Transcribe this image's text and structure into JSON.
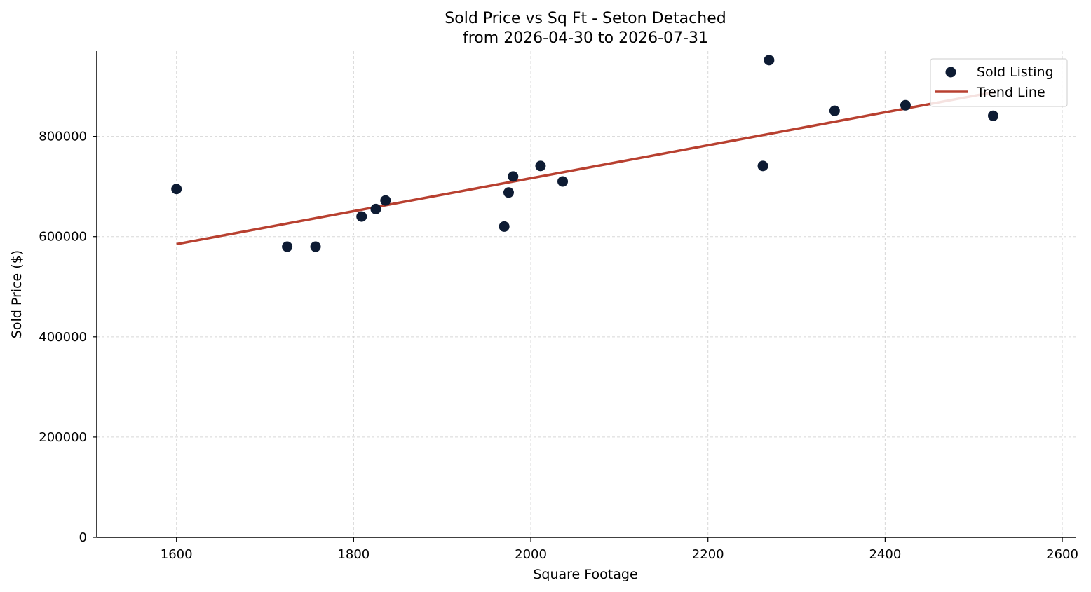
{
  "chart_data": {
    "type": "scatter",
    "title_line1": "Sold Price vs Sq Ft - Seton Detached",
    "title_line2": "from 2026-04-30 to 2026-07-31",
    "xlabel": "Square Footage",
    "ylabel": "Sold Price ($)",
    "xlim": [
      1510,
      2615
    ],
    "ylim": [
      0,
      970000
    ],
    "xticks": [
      1600,
      1800,
      2000,
      2200,
      2400,
      2600
    ],
    "yticks": [
      0,
      200000,
      400000,
      600000,
      800000
    ],
    "grid": true,
    "legend_position": "top-right",
    "series": [
      {
        "name": "Sold Listing",
        "kind": "scatter",
        "color": "#0d1b33",
        "points": [
          {
            "x": 1600,
            "y": 695000
          },
          {
            "x": 1725,
            "y": 580000
          },
          {
            "x": 1757,
            "y": 580000
          },
          {
            "x": 1809,
            "y": 640000
          },
          {
            "x": 1825,
            "y": 655000
          },
          {
            "x": 1836,
            "y": 672000
          },
          {
            "x": 1970,
            "y": 620000
          },
          {
            "x": 1975,
            "y": 688000
          },
          {
            "x": 1980,
            "y": 720000
          },
          {
            "x": 2011,
            "y": 741000
          },
          {
            "x": 2036,
            "y": 710000
          },
          {
            "x": 2262,
            "y": 741000
          },
          {
            "x": 2269,
            "y": 952000
          },
          {
            "x": 2343,
            "y": 851000
          },
          {
            "x": 2423,
            "y": 862000
          },
          {
            "x": 2522,
            "y": 841000
          }
        ]
      },
      {
        "name": "Trend Line",
        "kind": "line",
        "color": "#b84030",
        "points": [
          {
            "x": 1600,
            "y": 585000
          },
          {
            "x": 2522,
            "y": 888000
          }
        ]
      }
    ]
  }
}
